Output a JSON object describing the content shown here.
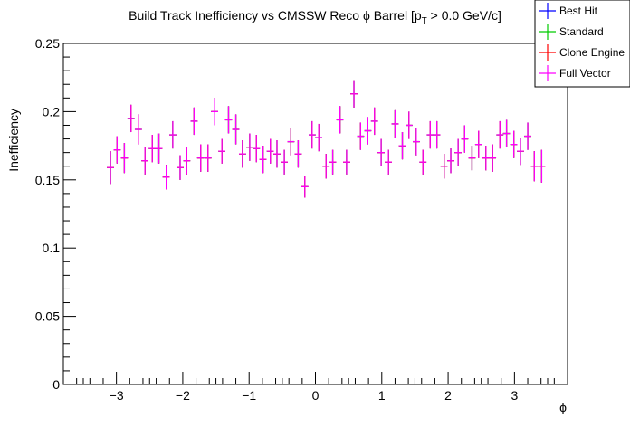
{
  "chart_data": {
    "type": "scatter",
    "title": "Build Track Inefficiency vs CMSSW Reco ϕ Barrel [p",
    "title_sub": "T",
    "title_tail": " > 0.0 GeV/c]",
    "xlabel": "ϕ",
    "ylabel": "Inefficiency",
    "xlim": [
      -3.8,
      3.8
    ],
    "ylim": [
      0,
      0.25
    ],
    "x_ticks": [
      -3,
      -2,
      -1,
      0,
      1,
      2,
      3
    ],
    "x_tick_labels": [
      "−3",
      "−2",
      "−1",
      "0",
      "1",
      "2",
      "3"
    ],
    "y_ticks": [
      0,
      0.05,
      0.1,
      0.15,
      0.2,
      0.25
    ],
    "y_tick_labels": [
      "0",
      "0.05",
      "0.1",
      "0.15",
      "0.2",
      "0.25"
    ],
    "legend_position": "top-right",
    "series": [
      {
        "name": "Best Hit",
        "color": "#0000ff"
      },
      {
        "name": "Standard",
        "color": "#00cc00"
      },
      {
        "name": "Clone Engine",
        "color": "#ff0000"
      },
      {
        "name": "Full Vector",
        "color": "#ff00ff"
      }
    ],
    "bin_half_width": 0.0524,
    "points": [
      {
        "x": -3.09,
        "y": 0.159,
        "err": 0.012
      },
      {
        "x": -2.99,
        "y": 0.172,
        "err": 0.01
      },
      {
        "x": -2.88,
        "y": 0.166,
        "err": 0.011
      },
      {
        "x": -2.78,
        "y": 0.195,
        "err": 0.01
      },
      {
        "x": -2.67,
        "y": 0.187,
        "err": 0.011
      },
      {
        "x": -2.57,
        "y": 0.164,
        "err": 0.01
      },
      {
        "x": -2.46,
        "y": 0.173,
        "err": 0.01
      },
      {
        "x": -2.36,
        "y": 0.173,
        "err": 0.011
      },
      {
        "x": -2.25,
        "y": 0.152,
        "err": 0.009
      },
      {
        "x": -2.15,
        "y": 0.183,
        "err": 0.01
      },
      {
        "x": -2.04,
        "y": 0.159,
        "err": 0.009
      },
      {
        "x": -1.94,
        "y": 0.164,
        "err": 0.01
      },
      {
        "x": -1.83,
        "y": 0.193,
        "err": 0.01
      },
      {
        "x": -1.73,
        "y": 0.166,
        "err": 0.01
      },
      {
        "x": -1.62,
        "y": 0.166,
        "err": 0.01
      },
      {
        "x": -1.52,
        "y": 0.2,
        "err": 0.01
      },
      {
        "x": -1.41,
        "y": 0.171,
        "err": 0.009
      },
      {
        "x": -1.31,
        "y": 0.194,
        "err": 0.01
      },
      {
        "x": -1.2,
        "y": 0.187,
        "err": 0.011
      },
      {
        "x": -1.1,
        "y": 0.169,
        "err": 0.01
      },
      {
        "x": -0.99,
        "y": 0.174,
        "err": 0.01
      },
      {
        "x": -0.89,
        "y": 0.173,
        "err": 0.01
      },
      {
        "x": -0.79,
        "y": 0.165,
        "err": 0.01
      },
      {
        "x": -0.68,
        "y": 0.171,
        "err": 0.009
      },
      {
        "x": -0.58,
        "y": 0.169,
        "err": 0.01
      },
      {
        "x": -0.47,
        "y": 0.163,
        "err": 0.009
      },
      {
        "x": -0.37,
        "y": 0.178,
        "err": 0.01
      },
      {
        "x": -0.26,
        "y": 0.169,
        "err": 0.01
      },
      {
        "x": -0.16,
        "y": 0.145,
        "err": 0.008
      },
      {
        "x": -0.05,
        "y": 0.183,
        "err": 0.01
      },
      {
        "x": 0.05,
        "y": 0.181,
        "err": 0.01
      },
      {
        "x": 0.16,
        "y": 0.16,
        "err": 0.009
      },
      {
        "x": 0.26,
        "y": 0.163,
        "err": 0.009
      },
      {
        "x": 0.37,
        "y": 0.194,
        "err": 0.01
      },
      {
        "x": 0.47,
        "y": 0.163,
        "err": 0.009
      },
      {
        "x": 0.58,
        "y": 0.213,
        "err": 0.01
      },
      {
        "x": 0.68,
        "y": 0.182,
        "err": 0.01
      },
      {
        "x": 0.79,
        "y": 0.186,
        "err": 0.01
      },
      {
        "x": 0.89,
        "y": 0.193,
        "err": 0.01
      },
      {
        "x": 0.99,
        "y": 0.17,
        "err": 0.01
      },
      {
        "x": 1.1,
        "y": 0.163,
        "err": 0.009
      },
      {
        "x": 1.2,
        "y": 0.191,
        "err": 0.01
      },
      {
        "x": 1.31,
        "y": 0.175,
        "err": 0.01
      },
      {
        "x": 1.41,
        "y": 0.19,
        "err": 0.01
      },
      {
        "x": 1.52,
        "y": 0.178,
        "err": 0.01
      },
      {
        "x": 1.62,
        "y": 0.163,
        "err": 0.009
      },
      {
        "x": 1.73,
        "y": 0.183,
        "err": 0.01
      },
      {
        "x": 1.83,
        "y": 0.183,
        "err": 0.01
      },
      {
        "x": 1.94,
        "y": 0.16,
        "err": 0.009
      },
      {
        "x": 2.04,
        "y": 0.164,
        "err": 0.009
      },
      {
        "x": 2.15,
        "y": 0.17,
        "err": 0.01
      },
      {
        "x": 2.25,
        "y": 0.18,
        "err": 0.01
      },
      {
        "x": 2.36,
        "y": 0.166,
        "err": 0.009
      },
      {
        "x": 2.46,
        "y": 0.176,
        "err": 0.01
      },
      {
        "x": 2.57,
        "y": 0.166,
        "err": 0.009
      },
      {
        "x": 2.67,
        "y": 0.166,
        "err": 0.01
      },
      {
        "x": 2.78,
        "y": 0.183,
        "err": 0.01
      },
      {
        "x": 2.88,
        "y": 0.184,
        "err": 0.01
      },
      {
        "x": 2.99,
        "y": 0.176,
        "err": 0.01
      },
      {
        "x": 3.09,
        "y": 0.171,
        "err": 0.01
      },
      {
        "x": 3.2,
        "y": 0.182,
        "err": 0.01
      },
      {
        "x": 3.3,
        "y": 0.16,
        "err": 0.011
      },
      {
        "x": 3.41,
        "y": 0.16,
        "err": 0.012
      }
    ]
  }
}
